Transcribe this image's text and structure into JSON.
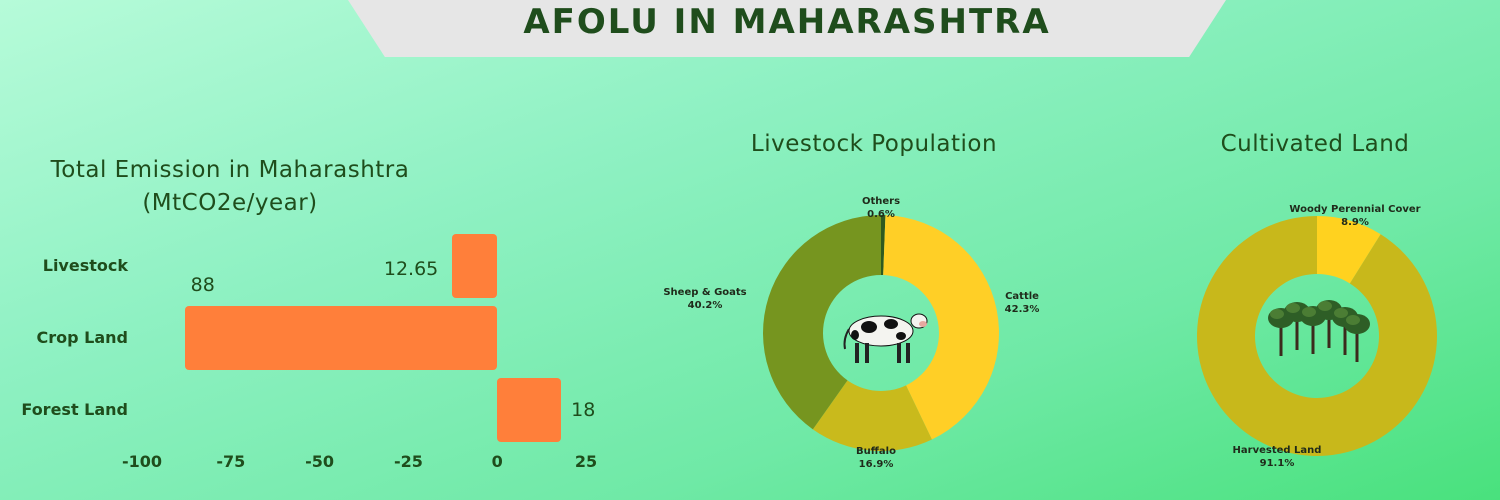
{
  "header": {
    "title": "AFOLU IN MAHARASHTRA"
  },
  "chart_data": [
    {
      "type": "bar",
      "orientation": "horizontal",
      "title": "Total Emission in Maharashtra",
      "subtitle": "(MtCO2e/year)",
      "categories": [
        "Livestock",
        "Crop Land",
        "Forest Land"
      ],
      "values": [
        -12.65,
        -88,
        18
      ],
      "value_labels": [
        "12.65",
        "88",
        "18"
      ],
      "xlim": [
        -100,
        25
      ],
      "xticks": [
        "-100",
        "-75",
        "-50",
        "-25",
        "0",
        "25"
      ],
      "grid": false,
      "color": "#ff7f3a"
    },
    {
      "type": "pie",
      "variant": "donut",
      "title": "Livestock Population",
      "center_icon": "cow-icon",
      "slices": [
        {
          "label": "Others",
          "value": 0.6,
          "display": "0.6%",
          "color": "#2f5a1f"
        },
        {
          "label": "Cattle",
          "value": 42.3,
          "display": "42.3%",
          "color": "#ffcf26"
        },
        {
          "label": "Buffalo",
          "value": 16.9,
          "display": "16.9%",
          "color": "#c9ba1c"
        },
        {
          "label": "Sheep & Goats",
          "value": 40.2,
          "display": "40.2%",
          "color": "#76951f"
        }
      ]
    },
    {
      "type": "pie",
      "variant": "donut",
      "title": "Cultivated Land",
      "center_icon": "trees-icon",
      "slices": [
        {
          "label": "Woody Perennial Cover",
          "value": 8.9,
          "display": "8.9%",
          "color": "#ffd21f"
        },
        {
          "label": "Harvested Land",
          "value": 91.1,
          "display": "91.1%",
          "color": "#c8b81b"
        }
      ]
    }
  ]
}
